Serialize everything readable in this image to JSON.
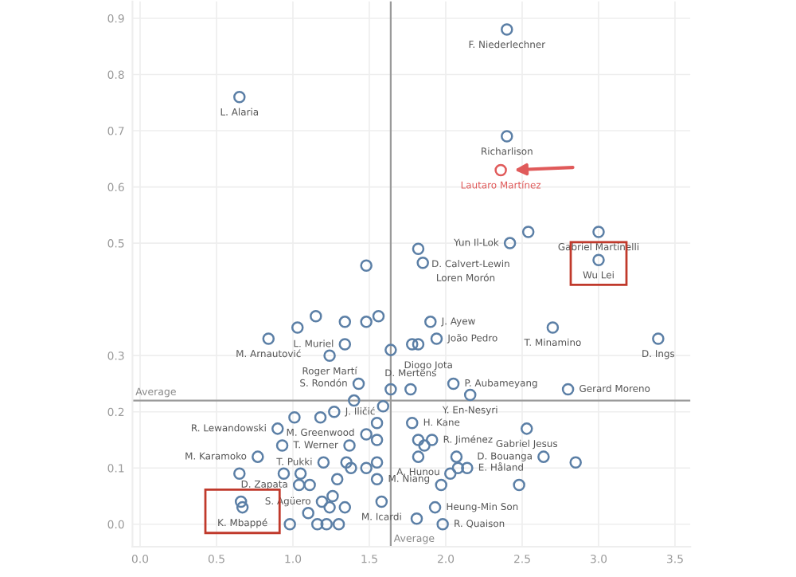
{
  "chart_data": {
    "type": "scatter",
    "xlim": [
      -0.05,
      3.6
    ],
    "ylim": [
      -0.04,
      0.93
    ],
    "xticks": [
      {
        "value": 0,
        "label": "0.0"
      },
      0.5,
      {
        "value": 1,
        "label": "1.0"
      },
      1.5,
      {
        "value": 2,
        "label": "2.0"
      },
      2.5,
      {
        "value": 3,
        "label": "3.0"
      },
      3.5
    ],
    "yticks": [
      {
        "value": 0,
        "label": "0.0"
      },
      0.1,
      0.2,
      0.3,
      0.5,
      0.6,
      0.7,
      0.8,
      0.9
    ],
    "grid": true,
    "marker": "circle",
    "series": [
      {
        "color": "#5b7fa6",
        "x": [
          0.65,
          2.4,
          2.4,
          1.82,
          3.0,
          3.0,
          2.42,
          1.85,
          2.54,
          1.48,
          0.84,
          1.34,
          1.24,
          1.43,
          1.64,
          1.27,
          0.9,
          1.18,
          0.93,
          0.77,
          1.2,
          1.04,
          1.55,
          1.19,
          0.67,
          0.66,
          1.9,
          1.94,
          2.7,
          3.39,
          2.05,
          2.16,
          2.8,
          1.77,
          1.78,
          1.91,
          2.53,
          2.64,
          2.85,
          2.14,
          1.58,
          1.93,
          1.98,
          1.01,
          1.4,
          1.59,
          1.64,
          1.48,
          1.55,
          1.55,
          1.37,
          0.65,
          0.94,
          1.05,
          1.35,
          1.38,
          1.48,
          1.55,
          1.29,
          1.11,
          1.26,
          1.1,
          0.98,
          1.16,
          1.22,
          1.3,
          1.24,
          1.34,
          1.03,
          1.15,
          1.34,
          1.48,
          1.56,
          1.82,
          1.78,
          1.82,
          2.07,
          2.08,
          2.03,
          1.97,
          1.82,
          1.86,
          1.81,
          2.48
        ],
        "values": [
          0.76,
          0.88,
          0.69,
          0.49,
          0.52,
          0.47,
          0.5,
          0.465,
          0.52,
          0.46,
          0.33,
          0.32,
          0.3,
          0.25,
          0.31,
          0.2,
          0.17,
          0.19,
          0.14,
          0.12,
          0.11,
          0.07,
          0.08,
          0.04,
          0.03,
          0.04,
          0.36,
          0.33,
          0.35,
          0.33,
          0.25,
          0.23,
          0.24,
          0.24,
          0.18,
          0.15,
          0.17,
          0.12,
          0.11,
          0.1,
          0.04,
          0.03,
          0.0,
          0.19,
          0.22,
          0.21,
          0.24,
          0.16,
          0.18,
          0.15,
          0.14,
          0.09,
          0.09,
          0.09,
          0.11,
          0.1,
          0.1,
          0.11,
          0.08,
          0.07,
          0.05,
          0.02,
          0.0,
          0.0,
          0.0,
          0.0,
          0.03,
          0.03,
          0.35,
          0.37,
          0.36,
          0.36,
          0.37,
          0.32,
          0.32,
          0.12,
          0.12,
          0.1,
          0.09,
          0.07,
          0.15,
          0.14,
          0.01,
          0.07
        ]
      },
      {
        "color": "#e05a5a",
        "x": [
          2.36
        ],
        "values": [
          0.63
        ]
      }
    ],
    "ref_lines": [
      {
        "axis": "y",
        "value": 0.22,
        "label": "Average",
        "color": "#9a9a9a"
      },
      {
        "axis": "x",
        "value": 1.64,
        "label": "Average",
        "color": "#9a9a9a"
      }
    ],
    "annotations": [
      {
        "text": "L. Alaria",
        "x": 0.65,
        "y": 0.76
      },
      {
        "text": "F. Niederlechner",
        "x": 2.4,
        "y": 0.88
      },
      {
        "text": "Richarlison",
        "x": 2.4,
        "y": 0.69
      },
      {
        "text": "Lautaro Martínez",
        "x": 2.36,
        "y": 0.63
      },
      {
        "text": "D. Calvert-Lewin",
        "x": 1.82,
        "y": 0.49
      },
      {
        "text": "Gabriel Martinelli",
        "x": 3.0,
        "y": 0.52
      },
      {
        "text": "Wu Lei",
        "x": 3.0,
        "y": 0.47
      },
      {
        "text": "Yun Il-Lok",
        "x": 2.42,
        "y": 0.5
      },
      {
        "text": "Loren Morón",
        "x": 1.85,
        "y": 0.465
      },
      {
        "text": "M. Arnautović",
        "x": 0.84,
        "y": 0.33
      },
      {
        "text": "L. Muriel",
        "x": 1.34,
        "y": 0.32
      },
      {
        "text": "Roger Martí",
        "x": 1.24,
        "y": 0.3
      },
      {
        "text": "S. Rondón",
        "x": 1.43,
        "y": 0.25
      },
      {
        "text": "Diogo Jota",
        "x": 1.64,
        "y": 0.31
      },
      {
        "text": "J. Iličić",
        "x": 1.27,
        "y": 0.2
      },
      {
        "text": "R. Lewandowski",
        "x": 0.9,
        "y": 0.17
      },
      {
        "text": "M. Greenwood",
        "x": 1.18,
        "y": 0.19
      },
      {
        "text": "T. Werner",
        "x": 0.93,
        "y": 0.14
      },
      {
        "text": "M. Karamoko",
        "x": 0.77,
        "y": 0.12
      },
      {
        "text": "T. Pukki",
        "x": 1.2,
        "y": 0.11
      },
      {
        "text": "D. Zapata",
        "x": 1.04,
        "y": 0.07
      },
      {
        "text": "M. Niang",
        "x": 1.55,
        "y": 0.08
      },
      {
        "text": "S. Agüero",
        "x": 1.19,
        "y": 0.04
      },
      {
        "text": "K. Mbappé",
        "x": 0.67,
        "y": 0.03
      },
      {
        "text": "J. Ayew",
        "x": 1.9,
        "y": 0.36
      },
      {
        "text": "João Pedro",
        "x": 1.94,
        "y": 0.33
      },
      {
        "text": "T. Minamino",
        "x": 2.7,
        "y": 0.35
      },
      {
        "text": "D. Ings",
        "x": 3.39,
        "y": 0.33
      },
      {
        "text": "P. Aubameyang",
        "x": 2.05,
        "y": 0.25
      },
      {
        "text": "Y. En-Nesyri",
        "x": 2.16,
        "y": 0.23
      },
      {
        "text": "Gerard Moreno",
        "x": 2.8,
        "y": 0.24
      },
      {
        "text": "D. Mertens",
        "x": 1.77,
        "y": 0.24
      },
      {
        "text": "H. Kane",
        "x": 1.78,
        "y": 0.18
      },
      {
        "text": "R. Jiménez",
        "x": 1.91,
        "y": 0.15
      },
      {
        "text": "Gabriel Jesus",
        "x": 2.53,
        "y": 0.17
      },
      {
        "text": "D. Bouanga",
        "x": 2.64,
        "y": 0.12
      },
      {
        "text": "E. Håland",
        "x": 2.14,
        "y": 0.1
      },
      {
        "text": "A. Hunou",
        "x": 1.82,
        "y": 0.12
      },
      {
        "text": "M. Icardi",
        "x": 1.58,
        "y": 0.04
      },
      {
        "text": "Heung-Min Son",
        "x": 1.93,
        "y": 0.03
      },
      {
        "text": "R. Quaison",
        "x": 1.98,
        "y": 0.0
      }
    ]
  }
}
